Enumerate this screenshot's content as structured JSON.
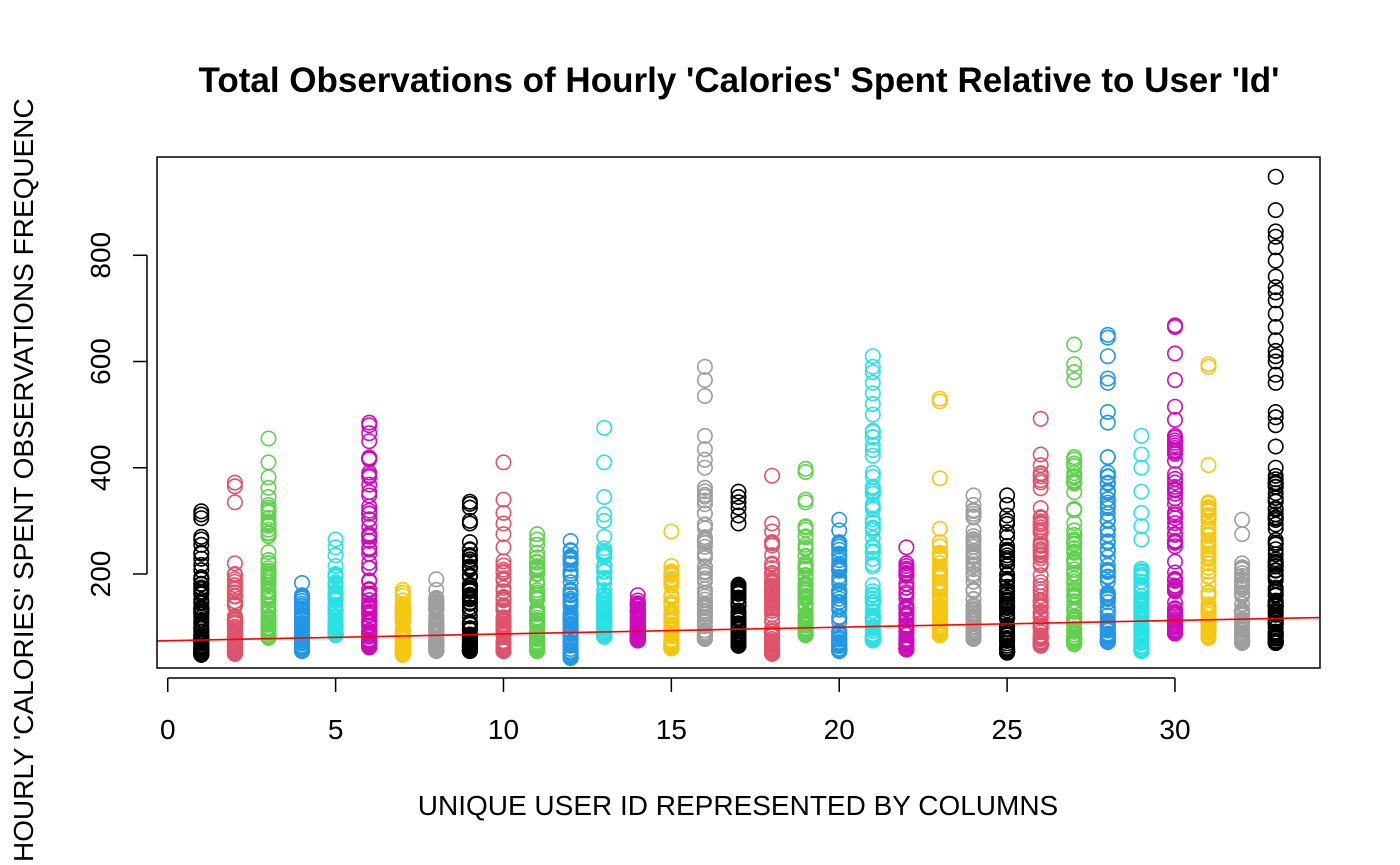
{
  "chart_data": {
    "type": "scatter",
    "title": "Total Observations of Hourly 'Calories' Spent Relative to User 'Id'",
    "xlabel": "UNIQUE USER ID REPRESENTED BY COLUMNS",
    "ylabel": "HOURLY 'CALORIES' SPENT OBSERVATIONS FREQUENC",
    "xlim": [
      -0.32,
      34.32
    ],
    "ylim": [
      23,
      985
    ],
    "x_ticks": [
      0,
      5,
      10,
      15,
      20,
      25,
      30
    ],
    "y_ticks": [
      200,
      400,
      600,
      800
    ],
    "grid": false,
    "legend": "none",
    "palette": [
      "#000000",
      "#DF536B",
      "#61D04F",
      "#2297E6",
      "#28E2E5",
      "#CD0BBC",
      "#F5C710",
      "#9E9E9E"
    ],
    "trend_line": {
      "color": "#ff0000",
      "x": [
        -0.32,
        34.32
      ],
      "y": [
        74,
        118
      ]
    },
    "columns": [
      {
        "id": 1,
        "min": 48,
        "max": 240,
        "outliers": [
          255,
          265,
          270,
          305,
          312,
          318
        ]
      },
      {
        "id": 2,
        "min": 50,
        "max": 200,
        "outliers": [
          220,
          335,
          365,
          372
        ]
      },
      {
        "id": 3,
        "min": 80,
        "max": 330,
        "outliers": [
          345,
          362,
          382,
          410,
          455
        ]
      },
      {
        "id": 4,
        "min": 55,
        "max": 160,
        "outliers": [
          183
        ]
      },
      {
        "id": 5,
        "min": 85,
        "max": 200,
        "outliers": [
          215,
          235,
          250,
          265
        ]
      },
      {
        "id": 6,
        "min": 62,
        "max": 450,
        "outliers": [
          465,
          480,
          485
        ]
      },
      {
        "id": 7,
        "min": 48,
        "max": 165,
        "outliers": [
          170
        ]
      },
      {
        "id": 8,
        "min": 55,
        "max": 155,
        "outliers": [
          170,
          190
        ]
      },
      {
        "id": 9,
        "min": 55,
        "max": 260,
        "outliers": [
          295,
          300,
          325,
          332,
          336
        ]
      },
      {
        "id": 10,
        "min": 55,
        "max": 250,
        "outliers": [
          275,
          295,
          315,
          340,
          410
        ]
      },
      {
        "id": 11,
        "min": 55,
        "max": 240,
        "outliers": [
          255,
          265,
          275
        ]
      },
      {
        "id": 12,
        "min": 42,
        "max": 245,
        "outliers": [
          262
        ]
      },
      {
        "id": 13,
        "min": 82,
        "max": 270,
        "outliers": [
          300,
          312,
          345,
          410,
          475
        ]
      },
      {
        "id": 14,
        "min": 75,
        "max": 150,
        "outliers": [
          160
        ]
      },
      {
        "id": 15,
        "min": 60,
        "max": 215,
        "outliers": [
          280
        ]
      },
      {
        "id": 16,
        "min": 78,
        "max": 400,
        "outliers": [
          415,
          435,
          460,
          535,
          565,
          590
        ]
      },
      {
        "id": 17,
        "min": 65,
        "max": 180,
        "outliers": [
          295,
          310,
          325,
          335,
          345,
          355
        ]
      },
      {
        "id": 18,
        "min": 50,
        "max": 260,
        "outliers": [
          280,
          295,
          385
        ]
      },
      {
        "id": 19,
        "min": 85,
        "max": 290,
        "outliers": [
          335,
          340,
          392,
          398
        ]
      },
      {
        "id": 20,
        "min": 55,
        "max": 260,
        "outliers": [
          282,
          302
        ]
      },
      {
        "id": 21,
        "min": 75,
        "max": 500,
        "outliers": [
          520,
          540,
          560,
          580,
          590,
          610
        ]
      },
      {
        "id": 22,
        "min": 58,
        "max": 220,
        "outliers": [
          250
        ]
      },
      {
        "id": 23,
        "min": 85,
        "max": 260,
        "outliers": [
          285,
          380,
          525,
          530
        ]
      },
      {
        "id": 24,
        "min": 78,
        "max": 320,
        "outliers": [
          330,
          348
        ]
      },
      {
        "id": 25,
        "min": 52,
        "max": 300,
        "outliers": [
          310,
          330,
          348
        ]
      },
      {
        "id": 26,
        "min": 65,
        "max": 390,
        "outliers": [
          405,
          425,
          492
        ]
      },
      {
        "id": 27,
        "min": 68,
        "max": 420,
        "outliers": [
          565,
          580,
          595,
          632
        ]
      },
      {
        "id": 28,
        "min": 72,
        "max": 420,
        "outliers": [
          485,
          505,
          560,
          568,
          610,
          645,
          650
        ]
      },
      {
        "id": 29,
        "min": 55,
        "max": 210,
        "outliers": [
          265,
          290,
          315,
          355,
          400,
          425,
          460
        ]
      },
      {
        "id": 30,
        "min": 88,
        "max": 460,
        "outliers": [
          490,
          515,
          565,
          615,
          665,
          668
        ]
      },
      {
        "id": 31,
        "min": 80,
        "max": 335,
        "outliers": [
          405,
          590,
          595
        ]
      },
      {
        "id": 32,
        "min": 70,
        "max": 220,
        "outliers": [
          275,
          302
        ]
      },
      {
        "id": 33,
        "min": 70,
        "max": 400,
        "outliers": [
          440,
          480,
          495,
          505,
          560,
          575,
          600,
          610,
          620,
          640,
          665,
          690,
          715,
          730,
          740,
          760,
          790,
          815,
          835,
          845,
          885,
          948
        ]
      }
    ]
  }
}
